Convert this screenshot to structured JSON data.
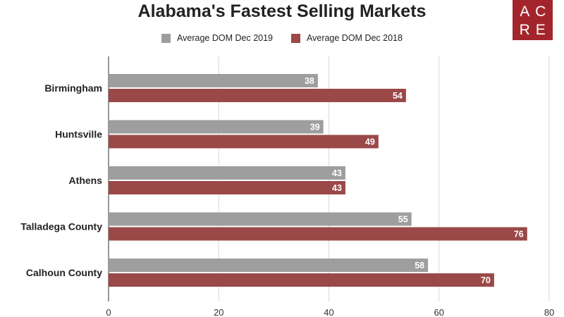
{
  "chart_data": {
    "type": "bar",
    "orientation": "horizontal",
    "title": "Alabama's Fastest Selling Markets",
    "categories": [
      "Birmingham",
      "Huntsville",
      "Athens",
      "Talladega County",
      "Calhoun County"
    ],
    "series": [
      {
        "name": "Average DOM Dec 2019",
        "color": "#9e9e9e",
        "values": [
          38,
          39,
          43,
          55,
          58
        ]
      },
      {
        "name": "Average DOM Dec 2018",
        "color": "#9b4848",
        "values": [
          54,
          49,
          43,
          76,
          70
        ]
      }
    ],
    "xlim": [
      0,
      80
    ],
    "x_ticks": [
      0,
      20,
      40,
      60,
      80
    ],
    "grid": true,
    "legend_position": "top",
    "data_labels": true
  },
  "logo": {
    "letters": [
      "A",
      "C",
      "R",
      "E"
    ],
    "background_color": "#a3252c"
  }
}
